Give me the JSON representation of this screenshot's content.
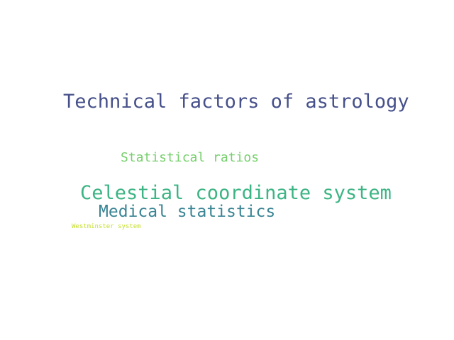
{
  "words": [
    {
      "text": "Technical factors of astrology",
      "color": "#46508a"
    },
    {
      "text": "Statistical ratios",
      "color": "#76cf6c"
    },
    {
      "text": "Celestial coordinate system",
      "color": "#3cb484"
    },
    {
      "text": "Medical statistics",
      "color": "#3a8494"
    },
    {
      "text": "Westminster system",
      "color": "#c4df24"
    }
  ]
}
